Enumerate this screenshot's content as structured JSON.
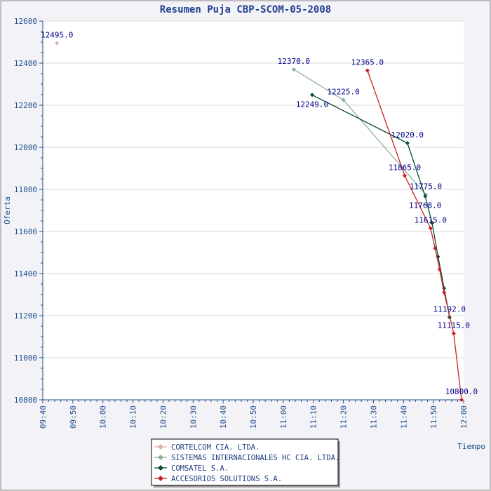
{
  "chart_data": {
    "type": "line",
    "title": "Resumen Puja CBP-SCOM-05-2008",
    "xlabel": "Tiempo",
    "ylabel": "Oferta",
    "ylim": [
      10800,
      12600
    ],
    "yticks": [
      10800,
      11000,
      11200,
      11400,
      11600,
      11800,
      12000,
      12200,
      12400,
      12600
    ],
    "xlim_minutes": [
      580,
      720
    ],
    "xticks": [
      "09:40",
      "09:50",
      "10:00",
      "10:10",
      "10:20",
      "10:30",
      "10:40",
      "10:50",
      "11:00",
      "11:10",
      "11:20",
      "11:30",
      "11:40",
      "11:50",
      "12:00"
    ],
    "grid": "horizontal",
    "legend_position": "bottom-center",
    "series": [
      {
        "name": "CORTELCOM CIA. LTDA.",
        "color": "#d8b0a8",
        "points": [
          {
            "t": "09:44.7",
            "y": 12495,
            "label": "12495.0"
          }
        ]
      },
      {
        "name": "SISTEMAS INTERNACIONALES HC CIA. LTDA.",
        "color": "#88b0a0",
        "points": [
          {
            "t": "11:03.5",
            "y": 12370,
            "label": "12370.0"
          },
          {
            "t": "11:20.0",
            "y": 12225,
            "label": "12225.0"
          },
          {
            "t": "11:47.4",
            "y": 11775,
            "label": "11775.0"
          }
        ]
      },
      {
        "name": "COMSATEL S.A.",
        "color": "#0c4a3c",
        "points": [
          {
            "t": "11:09.6",
            "y": 12249,
            "label": "12249.0"
          },
          {
            "t": "11:41.3",
            "y": 12020,
            "label": "12020.0"
          },
          {
            "t": "11:47.2",
            "y": 11768,
            "label": "11768.0"
          },
          {
            "t": "11:49.5",
            "y": 11640,
            "label": ""
          },
          {
            "t": "11:51.5",
            "y": 11480,
            "label": ""
          },
          {
            "t": "11:53.5",
            "y": 11330,
            "label": ""
          },
          {
            "t": "11:55.3",
            "y": 11192,
            "label": "11192.0"
          }
        ]
      },
      {
        "name": "ACCESORIOS SOLUTIONS S.A.",
        "color": "#cc2020",
        "points": [
          {
            "t": "11:28.0",
            "y": 12365,
            "label": "12365.0"
          },
          {
            "t": "11:40.4",
            "y": 11865,
            "label": "11865.0"
          },
          {
            "t": "11:49.0",
            "y": 11615,
            "label": "11615.0"
          },
          {
            "t": "11:50.5",
            "y": 11520,
            "label": ""
          },
          {
            "t": "11:52.0",
            "y": 11420,
            "label": ""
          },
          {
            "t": "11:53.5",
            "y": 11310,
            "label": ""
          },
          {
            "t": "11:56.7",
            "y": 11115,
            "label": "11115.0"
          },
          {
            "t": "11:59.3",
            "y": 10800,
            "label": "10800.0"
          }
        ]
      }
    ]
  }
}
